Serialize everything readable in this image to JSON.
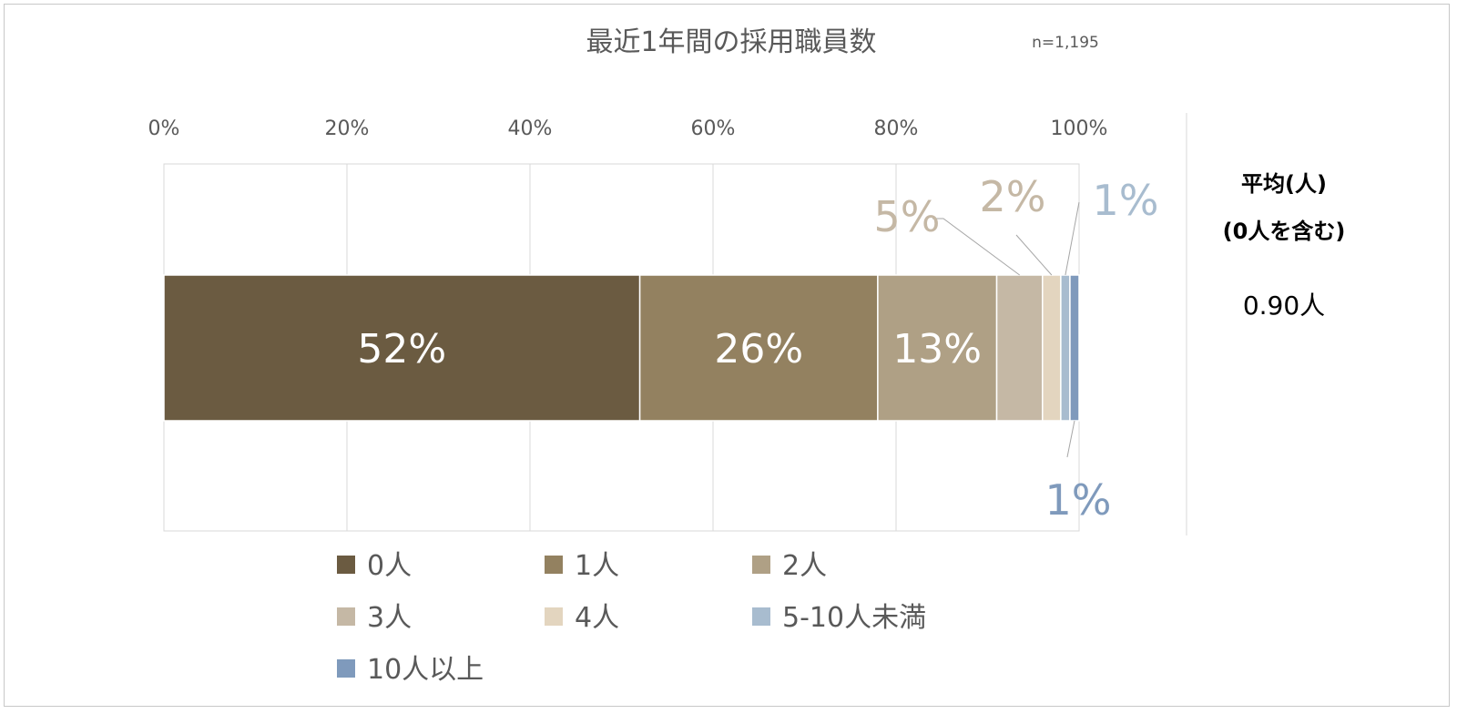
{
  "chart_data": {
    "type": "bar",
    "orientation": "horizontal-stacked-100",
    "title": "最近1年間の採用職員数",
    "sample_note": "n=1,195",
    "x_ticks": [
      "0%",
      "20%",
      "40%",
      "60%",
      "80%",
      "100%"
    ],
    "xlim": [
      0,
      100
    ],
    "grid": true,
    "legend_position": "bottom",
    "series": [
      {
        "name": "0人",
        "value": 52,
        "label": "52%",
        "color": "#6b5b41",
        "label_position": "inside"
      },
      {
        "name": "1人",
        "value": 26,
        "label": "26%",
        "color": "#938160",
        "label_position": "inside"
      },
      {
        "name": "2人",
        "value": 13,
        "label": "13%",
        "color": "#afa085",
        "label_position": "inside"
      },
      {
        "name": "3人",
        "value": 5,
        "label": "5%",
        "color": "#c5b8a5",
        "label_color": "#c5b8a5",
        "label_position": "callout-top"
      },
      {
        "name": "4人",
        "value": 2,
        "label": "2%",
        "color": "#e3d5bf",
        "label_color": "#c5b8a5",
        "label_position": "callout-top"
      },
      {
        "name": "5-10人未満",
        "value": 1,
        "label": "1%",
        "color": "#a8bccf",
        "label_color": "#a8bccf",
        "label_position": "callout-top"
      },
      {
        "name": "10人以上",
        "value": 1,
        "label": "1%",
        "color": "#7f9abc",
        "label_color": "#7f9abc",
        "label_position": "callout-bottom"
      }
    ],
    "side_panel": {
      "heading_line1": "平均(人)",
      "heading_line2": "(0人を含む)",
      "value": "0.90人"
    }
  }
}
